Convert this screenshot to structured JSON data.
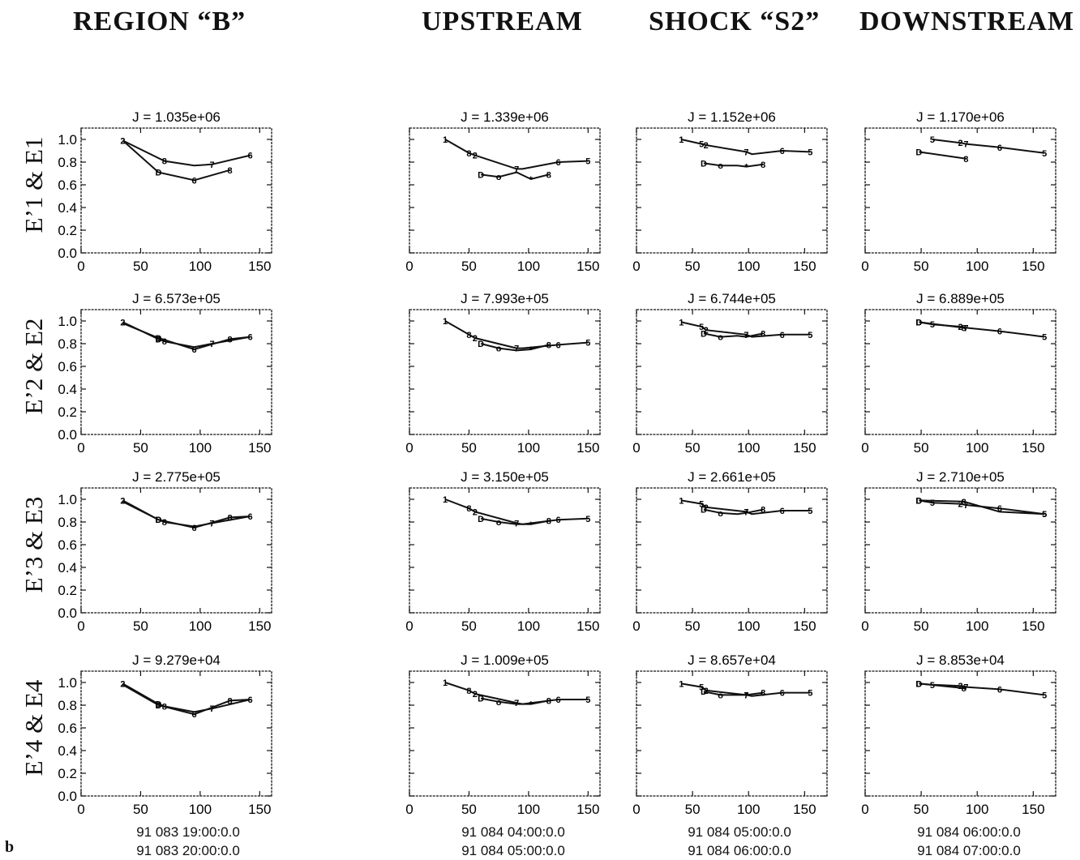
{
  "headers": {
    "region": "REGION “B”",
    "upstream": "UPSTREAM",
    "shock": "SHOCK “S2”",
    "downstream": "DOWNSTREAM"
  },
  "row_labels": [
    "E’1 & E1",
    "E’2 & E2",
    "E’3 & E3",
    "E’4 & E4"
  ],
  "time_labels": [
    [
      "91 083 19:00:0.0",
      "91 083 20:00:0.0"
    ],
    [
      "91 084 04:00:0.0",
      "91 084 05:00:0.0"
    ],
    [
      "91 084 05:00:0.0",
      "91 084 06:00:0.0"
    ],
    [
      "91 084 06:00:0.0",
      "91 084 07:00:0.0"
    ]
  ],
  "panel_label": "b",
  "chart_data": {
    "type": "line",
    "grid": false,
    "xlim": [
      0,
      150
    ],
    "ylim": [
      0,
      1.1
    ],
    "xticks": [
      "0",
      "50",
      "100",
      "150"
    ],
    "yticks": [
      "0.0",
      "0.2",
      "0.4",
      "0.6",
      "0.8",
      "1.0"
    ],
    "panels": [
      [
        {
          "title": "J = 1.035e+06",
          "series": [
            {
              "x": [
                35,
                70,
                95,
                110,
                142
              ],
              "y": [
                0.99,
                0.81,
                0.77,
                0.78,
                0.86
              ],
              "markers": [
                "2",
                "8",
                "",
                "7",
                "6"
              ]
            },
            {
              "x": [
                35,
                65,
                95,
                125
              ],
              "y": [
                0.99,
                0.71,
                0.64,
                0.73
              ],
              "markers": [
                "",
                "D",
                "6",
                "8"
              ]
            }
          ]
        },
        {
          "title": "J = 1.339e+06",
          "series": [
            {
              "x": [
                30,
                50,
                55,
                90,
                95,
                125,
                150
              ],
              "y": [
                1.0,
                0.88,
                0.86,
                0.74,
                0.74,
                0.8,
                0.81
              ],
              "markers": [
                "1",
                "8",
                "2",
                "7",
                "",
                "6",
                "5"
              ]
            },
            {
              "x": [
                60,
                75,
                90,
                102,
                117
              ],
              "y": [
                0.69,
                0.67,
                0.71,
                0.65,
                0.69
              ],
              "markers": [
                "D",
                "o",
                "",
                "*",
                "8"
              ]
            }
          ]
        },
        {
          "title": "J = 1.152e+06",
          "series": [
            {
              "x": [
                40,
                58,
                62,
                98,
                103,
                130,
                155
              ],
              "y": [
                1.0,
                0.96,
                0.95,
                0.89,
                0.87,
                0.9,
                0.89
              ],
              "markers": [
                "1",
                "5",
                "2",
                "7",
                "",
                "6",
                "5"
              ]
            },
            {
              "x": [
                60,
                75,
                90,
                98,
                113
              ],
              "y": [
                0.79,
                0.77,
                0.77,
                0.76,
                0.78
              ],
              "markers": [
                "D",
                "o",
                "",
                "*",
                "8"
              ]
            }
          ]
        },
        {
          "title": "J = 1.170e+06",
          "series": [
            {
              "x": [
                60,
                85,
                90,
                120,
                160
              ],
              "y": [
                1.0,
                0.97,
                0.96,
                0.93,
                0.88
              ],
              "markers": [
                "5",
                "2",
                "7",
                "6",
                "5"
              ]
            },
            {
              "x": [
                48,
                90
              ],
              "y": [
                0.89,
                0.83
              ],
              "markers": [
                "D",
                "8"
              ]
            }
          ]
        }
      ],
      [
        {
          "title": "J = 6.573e+05",
          "series": [
            {
              "x": [
                35,
                65,
                70,
                95,
                110,
                142
              ],
              "y": [
                0.99,
                0.84,
                0.82,
                0.77,
                0.8,
                0.86
              ],
              "markers": [
                "2",
                "D",
                "8",
                "",
                "7",
                "6"
              ]
            },
            {
              "x": [
                35,
                65,
                95,
                125,
                142
              ],
              "y": [
                0.98,
                0.85,
                0.75,
                0.84,
                0.86
              ],
              "markers": [
                "",
                "D",
                "6",
                "8",
                ""
              ]
            }
          ]
        },
        {
          "title": "J = 7.993e+05",
          "series": [
            {
              "x": [
                30,
                50,
                55,
                90,
                95,
                125,
                150
              ],
              "y": [
                1.0,
                0.88,
                0.85,
                0.76,
                0.76,
                0.79,
                0.81
              ],
              "markers": [
                "1",
                "8",
                "2",
                "7",
                "",
                "6",
                "5"
              ]
            },
            {
              "x": [
                60,
                75,
                90,
                102,
                117
              ],
              "y": [
                0.8,
                0.76,
                0.74,
                0.75,
                0.79
              ],
              "markers": [
                "D",
                "o",
                "",
                "*",
                "8"
              ]
            }
          ]
        },
        {
          "title": "J = 6.744e+05",
          "series": [
            {
              "x": [
                40,
                58,
                62,
                98,
                103,
                130,
                155
              ],
              "y": [
                0.99,
                0.95,
                0.92,
                0.88,
                0.86,
                0.88,
                0.88
              ],
              "markers": [
                "1",
                "5",
                "2",
                "7",
                "",
                "6",
                "5"
              ]
            },
            {
              "x": [
                60,
                75,
                90,
                98,
                113
              ],
              "y": [
                0.89,
                0.86,
                0.87,
                0.86,
                0.89
              ],
              "markers": [
                "D",
                "o",
                "",
                "*",
                "8"
              ]
            }
          ]
        },
        {
          "title": "J = 6.889e+05",
          "series": [
            {
              "x": [
                48,
                60,
                85,
                90,
                120,
                160
              ],
              "y": [
                0.99,
                0.97,
                0.95,
                0.94,
                0.91,
                0.86
              ],
              "markers": [
                "D",
                "5",
                "2",
                "7",
                "6",
                "5"
              ]
            },
            {
              "x": [
                48,
                88,
                90
              ],
              "y": [
                0.99,
                0.94,
                0.93
              ],
              "markers": [
                "D",
                "8",
                ""
              ]
            }
          ]
        }
      ],
      [
        {
          "title": "J = 2.775e+05",
          "series": [
            {
              "x": [
                35,
                65,
                70,
                95,
                110,
                142
              ],
              "y": [
                0.99,
                0.82,
                0.8,
                0.76,
                0.79,
                0.85
              ],
              "markers": [
                "2",
                "D",
                "8",
                "",
                "7",
                "6"
              ]
            },
            {
              "x": [
                35,
                65,
                95,
                125,
                142
              ],
              "y": [
                0.98,
                0.82,
                0.75,
                0.84,
                0.85
              ],
              "markers": [
                "",
                "D",
                "6",
                "8",
                ""
              ]
            }
          ]
        },
        {
          "title": "J = 3.150e+05",
          "series": [
            {
              "x": [
                30,
                50,
                55,
                90,
                95,
                125,
                150
              ],
              "y": [
                1.0,
                0.92,
                0.89,
                0.79,
                0.78,
                0.82,
                0.83
              ],
              "markers": [
                "1",
                "8",
                "2",
                "7",
                "",
                "6",
                "5"
              ]
            },
            {
              "x": [
                60,
                75,
                90,
                102,
                117
              ],
              "y": [
                0.83,
                0.8,
                0.78,
                0.78,
                0.81
              ],
              "markers": [
                "D",
                "o",
                "",
                "*",
                "8"
              ]
            }
          ]
        },
        {
          "title": "J = 2.661e+05",
          "series": [
            {
              "x": [
                40,
                58,
                62,
                98,
                103,
                130,
                155
              ],
              "y": [
                0.99,
                0.96,
                0.93,
                0.89,
                0.87,
                0.9,
                0.9
              ],
              "markers": [
                "1",
                "5",
                "2",
                "7",
                "",
                "6",
                "5"
              ]
            },
            {
              "x": [
                60,
                75,
                90,
                98,
                113
              ],
              "y": [
                0.91,
                0.88,
                0.87,
                0.88,
                0.91
              ],
              "markers": [
                "D",
                "o",
                "",
                "*",
                "8"
              ]
            }
          ]
        },
        {
          "title": "J = 2.710e+05",
          "series": [
            {
              "x": [
                48,
                60,
                85,
                90,
                120,
                160
              ],
              "y": [
                0.99,
                0.97,
                0.96,
                0.95,
                0.92,
                0.87
              ],
              "markers": [
                "D",
                "5",
                "2",
                "7",
                "6",
                "5"
              ]
            },
            {
              "x": [
                48,
                88,
                120,
                160
              ],
              "y": [
                0.99,
                0.98,
                0.89,
                0.87
              ],
              "markers": [
                "D",
                "8",
                "",
                "5"
              ]
            }
          ]
        }
      ],
      [
        {
          "title": "J = 9.279e+04",
          "series": [
            {
              "x": [
                35,
                65,
                70,
                95,
                110,
                142
              ],
              "y": [
                0.99,
                0.81,
                0.79,
                0.74,
                0.77,
                0.85
              ],
              "markers": [
                "2",
                "D",
                "8",
                "",
                "7",
                "6"
              ]
            },
            {
              "x": [
                35,
                65,
                95,
                125,
                142
              ],
              "y": [
                0.98,
                0.8,
                0.72,
                0.84,
                0.85
              ],
              "markers": [
                "",
                "D",
                "6",
                "8",
                ""
              ]
            }
          ]
        },
        {
          "title": "J = 1.009e+05",
          "series": [
            {
              "x": [
                30,
                50,
                55,
                90,
                95,
                125,
                150
              ],
              "y": [
                1.0,
                0.93,
                0.9,
                0.82,
                0.81,
                0.85,
                0.85
              ],
              "markers": [
                "1",
                "8",
                "2",
                "7",
                "",
                "6",
                "5"
              ]
            },
            {
              "x": [
                60,
                75,
                90,
                102,
                117
              ],
              "y": [
                0.86,
                0.83,
                0.81,
                0.81,
                0.84
              ],
              "markers": [
                "D",
                "o",
                "",
                "*",
                "8"
              ]
            }
          ]
        },
        {
          "title": "J = 8.657e+04",
          "series": [
            {
              "x": [
                40,
                58,
                62,
                98,
                103,
                130,
                155
              ],
              "y": [
                0.99,
                0.96,
                0.93,
                0.89,
                0.88,
                0.91,
                0.91
              ],
              "markers": [
                "1",
                "5",
                "2",
                "7",
                "",
                "6",
                "5"
              ]
            },
            {
              "x": [
                60,
                75,
                90,
                98,
                113
              ],
              "y": [
                0.92,
                0.89,
                0.89,
                0.89,
                0.91
              ],
              "markers": [
                "D",
                "o",
                "",
                "*",
                "8"
              ]
            }
          ]
        },
        {
          "title": "J = 8.853e+04",
          "series": [
            {
              "x": [
                48,
                60,
                85,
                90,
                120,
                160
              ],
              "y": [
                0.99,
                0.98,
                0.97,
                0.96,
                0.94,
                0.89
              ],
              "markers": [
                "D",
                "5",
                "2",
                "7",
                "6",
                "5"
              ]
            },
            {
              "x": [
                48,
                88,
                90
              ],
              "y": [
                0.99,
                0.95,
                0.94
              ],
              "markers": [
                "D",
                "8",
                ""
              ]
            }
          ]
        }
      ]
    ]
  }
}
